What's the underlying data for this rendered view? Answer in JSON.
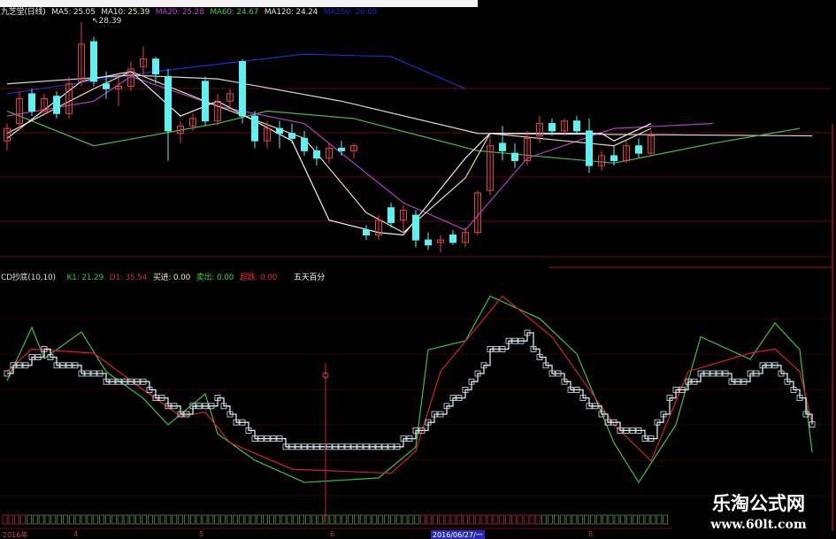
{
  "header": {
    "stock": "九芝堂(日线)",
    "ma": [
      {
        "label": "MA5: 25.05",
        "color": "#e8e8e8"
      },
      {
        "label": "MA10: 25.39",
        "color": "#e8e0c0"
      },
      {
        "label": "MA20: 25.28",
        "color": "#c040d0"
      },
      {
        "label": "MA60: 24.67",
        "color": "#50c050"
      },
      {
        "label": "MA120: 24.24",
        "color": "#e0e0e0"
      },
      {
        "label": "MA250: 26.08",
        "color": "#2020c0"
      }
    ],
    "high_marker": "28.39"
  },
  "indicator": {
    "name": "CD抄底(10,10)",
    "k1": "K1: 21.29",
    "d1": "D1: 35.54",
    "buy": "买进: 0.00",
    "sell": "卖出: 0.00",
    "oversold": "超跌: 0.00",
    "extra": "五天百分"
  },
  "axis": {
    "labels": [
      "2016年",
      "4",
      "5",
      "6",
      "2016/06/27/一",
      "8"
    ]
  },
  "watermark": {
    "title": "乐淘公式网",
    "url": "www.60lt.com"
  },
  "colors": {
    "up": "#e04050",
    "down": "#60f0f0",
    "k": "#40c040",
    "d": "#d02030",
    "step": "#d8e8f0",
    "grid": "#5a0a10"
  },
  "chart_data": [
    {
      "type": "candlestick",
      "title": "九芝堂(日线)",
      "ohlc": [
        [
          23.6,
          24.3,
          23.2,
          24.1
        ],
        [
          24.3,
          25.6,
          24.0,
          25.3
        ],
        [
          25.5,
          25.7,
          24.6,
          24.8
        ],
        [
          24.8,
          25.5,
          24.6,
          25.3
        ],
        [
          25.4,
          25.6,
          24.5,
          24.7
        ],
        [
          24.7,
          26.2,
          24.5,
          25.9
        ],
        [
          26.0,
          28.39,
          25.8,
          27.5
        ],
        [
          27.6,
          27.8,
          25.8,
          26.0
        ],
        [
          25.9,
          26.4,
          25.3,
          25.7
        ],
        [
          25.7,
          26.2,
          25.0,
          25.8
        ],
        [
          25.8,
          26.8,
          25.6,
          26.5
        ],
        [
          26.6,
          27.4,
          26.2,
          26.9
        ],
        [
          26.9,
          27.0,
          25.9,
          26.3
        ],
        [
          26.2,
          26.5,
          22.8,
          24.0
        ],
        [
          23.9,
          24.4,
          23.5,
          24.2
        ],
        [
          24.2,
          24.7,
          24.0,
          24.5
        ],
        [
          26.0,
          26.2,
          24.2,
          24.4
        ],
        [
          24.4,
          25.5,
          24.2,
          25.2
        ],
        [
          25.2,
          25.7,
          24.9,
          25.5
        ],
        [
          26.8,
          26.9,
          24.3,
          24.6
        ],
        [
          24.6,
          24.8,
          23.3,
          23.6
        ],
        [
          23.6,
          24.4,
          23.3,
          24.1
        ],
        [
          24.1,
          24.4,
          23.3,
          23.9
        ],
        [
          23.9,
          24.3,
          23.5,
          23.7
        ],
        [
          23.7,
          24.0,
          23.0,
          23.2
        ],
        [
          23.2,
          23.4,
          22.6,
          22.9
        ],
        [
          22.9,
          23.5,
          22.7,
          23.3
        ],
        [
          23.3,
          23.6,
          23.0,
          23.2
        ],
        [
          23.2,
          23.5,
          22.9,
          23.4
        ],
        [
          20.0,
          20.2,
          19.6,
          19.8
        ],
        [
          19.8,
          20.6,
          19.6,
          20.4
        ],
        [
          20.9,
          21.1,
          20.1,
          20.3
        ],
        [
          20.4,
          21.0,
          19.8,
          20.8
        ],
        [
          20.6,
          20.8,
          19.3,
          19.6
        ],
        [
          19.6,
          19.9,
          19.2,
          19.4
        ],
        [
          19.5,
          19.8,
          19.1,
          19.6
        ],
        [
          19.8,
          20.0,
          19.4,
          19.5
        ],
        [
          19.5,
          20.1,
          19.3,
          19.9
        ],
        [
          19.9,
          21.6,
          19.8,
          21.5
        ],
        [
          21.6,
          23.8,
          21.4,
          23.4
        ],
        [
          23.5,
          24.2,
          22.8,
          23.2
        ],
        [
          23.1,
          23.5,
          22.5,
          22.8
        ],
        [
          22.8,
          24.0,
          22.6,
          23.7
        ],
        [
          23.8,
          24.6,
          23.5,
          24.3
        ],
        [
          24.3,
          24.5,
          23.8,
          24.0
        ],
        [
          24.0,
          24.5,
          23.8,
          24.4
        ],
        [
          24.4,
          24.6,
          23.9,
          24.0
        ],
        [
          24.0,
          24.5,
          22.3,
          22.6
        ],
        [
          22.6,
          23.2,
          22.4,
          23.0
        ],
        [
          23.0,
          23.4,
          22.6,
          22.8
        ],
        [
          22.8,
          23.6,
          22.7,
          23.4
        ],
        [
          23.4,
          23.7,
          22.9,
          23.1
        ],
        [
          23.1,
          24.0,
          23.0,
          23.8
        ]
      ],
      "moving_averages": [
        {
          "name": "MA250",
          "color": "#2828c8",
          "points": [
            [
              0,
              25.5
            ],
            [
              12,
              26.4
            ],
            [
              24,
              27.1
            ],
            [
              31,
              27.0
            ],
            [
              37,
              25.7
            ]
          ]
        },
        {
          "name": "MA120",
          "color": "#d8d8d8",
          "points": [
            [
              0,
              25.9
            ],
            [
              10,
              26.25
            ],
            [
              17,
              26.1
            ],
            [
              27,
              25.2
            ],
            [
              38,
              23.9
            ],
            [
              65,
              23.8
            ]
          ]
        },
        {
          "name": "MA60",
          "color": "#50b850",
          "points": [
            [
              0,
              24.8
            ],
            [
              7,
              23.4
            ],
            [
              17,
              24.3
            ],
            [
              21,
              24.8
            ],
            [
              28,
              24.5
            ],
            [
              38,
              23.2
            ],
            [
              49,
              22.7
            ],
            [
              57,
              23.5
            ],
            [
              64,
              24.1
            ]
          ]
        },
        {
          "name": "MA20",
          "color": "#b040c0",
          "points": [
            [
              0,
              24.6
            ],
            [
              7,
              25.2
            ],
            [
              10,
              26.2
            ],
            [
              17,
              25.0
            ],
            [
              24,
              24.3
            ],
            [
              32,
              21.1
            ],
            [
              37,
              20.0
            ],
            [
              42,
              22.9
            ],
            [
              49,
              24.1
            ],
            [
              57,
              24.3
            ]
          ]
        },
        {
          "name": "MA10",
          "color": "#e8d8a8",
          "points": [
            [
              0,
              23.9
            ],
            [
              7,
              25.7
            ],
            [
              10,
              26.4
            ],
            [
              17,
              25.0
            ],
            [
              24,
              23.7
            ],
            [
              29,
              20.7
            ],
            [
              32,
              19.9
            ],
            [
              37,
              22.1
            ],
            [
              39,
              23.9
            ],
            [
              49,
              23.4
            ],
            [
              52,
              24.1
            ]
          ]
        },
        {
          "name": "MA5",
          "color": "#f0f0f0",
          "points": [
            [
              0,
              23.7
            ],
            [
              6,
              26.0
            ],
            [
              10,
              26.4
            ],
            [
              14,
              24.6
            ],
            [
              17,
              25.2
            ],
            [
              23,
              23.6
            ],
            [
              26,
              20.4
            ],
            [
              30,
              19.9
            ],
            [
              32,
              19.8
            ],
            [
              37,
              22.9
            ],
            [
              39,
              23.9
            ],
            [
              48,
              23.9
            ],
            [
              49,
              23.6
            ],
            [
              52,
              24.3
            ]
          ]
        }
      ]
    },
    {
      "type": "line",
      "title": "CD抄底(10,10)",
      "ylim": [
        0,
        100
      ],
      "series": [
        {
          "name": "K1",
          "color": "#40c040",
          "points": [
            [
              0,
              56.5
            ],
            [
              2,
              82.6
            ],
            [
              3,
              67.4
            ],
            [
              6,
              80.4
            ],
            [
              8,
              60.9
            ],
            [
              11,
              47.8
            ],
            [
              13,
              34.8
            ],
            [
              16,
              50
            ],
            [
              17,
              30.4
            ],
            [
              20,
              17.4
            ],
            [
              24,
              6.5
            ],
            [
              30,
              8.7
            ],
            [
              33,
              23.9
            ],
            [
              34,
              71.7
            ],
            [
              37,
              76
            ],
            [
              39,
              98
            ],
            [
              43,
              87
            ],
            [
              46,
              69.6
            ],
            [
              49,
              26
            ],
            [
              51,
              6.5
            ],
            [
              54,
              34.8
            ],
            [
              56,
              78
            ],
            [
              60,
              67
            ],
            [
              62,
              84.8
            ],
            [
              64,
              71.7
            ],
            [
              65,
              21.29
            ]
          ]
        },
        {
          "name": "D1",
          "color": "#d02030",
          "points": [
            [
              0,
              61
            ],
            [
              2,
              72
            ],
            [
              7,
              70
            ],
            [
              11,
              52
            ],
            [
              14,
              39
            ],
            [
              16,
              41
            ],
            [
              18,
              26
            ],
            [
              23,
              13
            ],
            [
              31,
              11
            ],
            [
              33,
              22
            ],
            [
              35,
              61
            ],
            [
              40,
              98
            ],
            [
              44,
              78
            ],
            [
              49,
              35
            ],
            [
              52,
              17
            ],
            [
              55,
              61
            ],
            [
              60,
              70
            ],
            [
              62,
              72
            ],
            [
              64,
              61
            ],
            [
              65,
              35.54
            ]
          ]
        },
        {
          "name": "五天百分",
          "color": "#d8e8f0",
          "step": true,
          "points": [
            [
              0,
              61
            ],
            [
              3,
              70
            ],
            [
              4,
              65
            ],
            [
              7,
              59
            ],
            [
              11,
              54
            ],
            [
              14,
              41
            ],
            [
              17,
              46
            ],
            [
              20,
              28
            ],
            [
              24,
              24
            ],
            [
              28,
              22
            ],
            [
              31,
              22
            ],
            [
              33,
              30
            ],
            [
              37,
              52
            ],
            [
              39,
              70
            ],
            [
              42,
              78
            ],
            [
              44,
              61
            ],
            [
              49,
              35
            ],
            [
              52,
              28
            ],
            [
              54,
              52
            ],
            [
              57,
              61
            ],
            [
              59,
              56
            ],
            [
              62,
              65
            ],
            [
              64,
              46
            ],
            [
              65,
              35
            ]
          ]
        }
      ]
    }
  ]
}
